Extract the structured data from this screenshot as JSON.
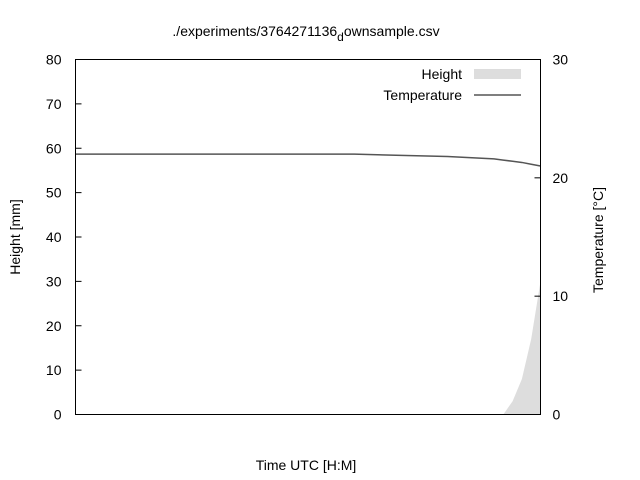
{
  "chart_data": {
    "type": "area",
    "title_main": "./experiments/3764271136",
    "title_sub": "d",
    "title_tail": "ownsample.csv",
    "xlabel": "Time UTC [H:M]",
    "ylabel": "Height [mm]",
    "y2label": "Temperature [°C]",
    "ylim": [
      0,
      80
    ],
    "y2lim": [
      0,
      30
    ],
    "yticks": [
      "0",
      "10",
      "20",
      "30",
      "40",
      "50",
      "60",
      "70",
      "80"
    ],
    "y2ticks": [
      "0",
      "10",
      "20",
      "30"
    ],
    "legend_position": "top-right",
    "grid": false,
    "x": [
      0,
      0.3,
      0.6,
      0.7,
      0.8,
      0.9,
      0.92,
      0.94,
      0.96,
      0.98,
      1.0
    ],
    "series": [
      {
        "name": "Height",
        "axis": "left",
        "style": "area",
        "color": "#dddddd",
        "values": [
          0,
          0,
          0,
          0,
          0,
          0,
          0,
          3,
          8,
          17,
          30
        ]
      },
      {
        "name": "Temperature",
        "axis": "right",
        "style": "line",
        "color": "#555555",
        "values": [
          22.0,
          22.0,
          22.0,
          21.9,
          21.8,
          21.6,
          21.5,
          21.4,
          21.3,
          21.15,
          21.0
        ]
      }
    ]
  }
}
